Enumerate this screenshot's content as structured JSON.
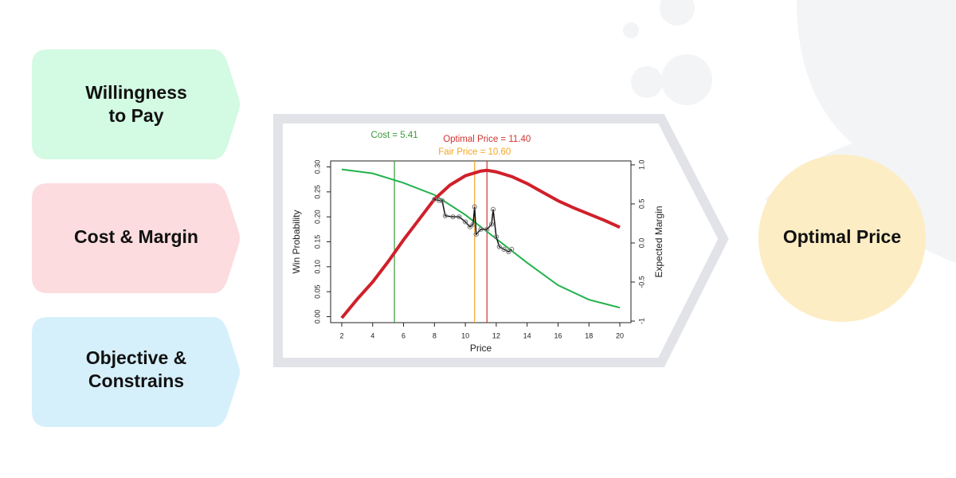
{
  "inputs": [
    [
      "Willingness",
      "to Pay"
    ],
    [
      "Cost & Margin"
    ],
    [
      "Objective &",
      "Constrains"
    ]
  ],
  "output": "Optimal Price",
  "chart_data": {
    "type": "line",
    "x_label": "Price",
    "y_label": "Win Probability",
    "y2_label": "Expected Margin",
    "xlim": [
      1.28,
      20.72
    ],
    "xticks": [
      2,
      4,
      6,
      8,
      10,
      12,
      14,
      16,
      18,
      20
    ],
    "ylim": [
      -0.012,
      0.312
    ],
    "yticks": [
      {
        "value": 0,
        "label": "0.00"
      },
      {
        "value": 0.05,
        "label": "0.05"
      },
      {
        "value": 0.1,
        "label": "0.10"
      },
      {
        "value": 0.15,
        "label": "0.15"
      },
      {
        "value": 0.2,
        "label": "0.20"
      },
      {
        "value": 0.25,
        "label": "0.25"
      },
      {
        "value": 0.3,
        "label": "0.30"
      }
    ],
    "y2lim": [
      -1.02,
      1.05
    ],
    "y2ticks": [
      -1,
      -0.5,
      {
        "value": 0,
        "label": "0.0"
      },
      0.5,
      {
        "value": 1,
        "label": "1.0"
      }
    ],
    "series": [
      {
        "color": "#22b24c",
        "x": [
          2,
          4,
          6,
          8,
          10,
          12,
          14,
          16,
          18,
          20
        ],
        "values": [
          0.295,
          0.287,
          0.268,
          0.244,
          0.204,
          0.156,
          0.108,
          0.063,
          0.034,
          0.018
        ]
      },
      {
        "color": "#d0202a",
        "axis": "y2",
        "x": [
          2,
          3,
          4,
          5,
          6,
          7,
          8,
          9,
          10,
          11,
          11.4,
          12,
          13,
          14,
          15,
          16,
          17,
          18,
          19,
          20
        ],
        "values": [
          -0.96,
          -0.72,
          -0.5,
          -0.24,
          0.04,
          0.3,
          0.56,
          0.74,
          0.86,
          0.92,
          0.93,
          0.91,
          0.85,
          0.76,
          0.65,
          0.54,
          0.45,
          0.37,
          0.29,
          0.2
        ]
      },
      {
        "color": "#111111",
        "markers": true,
        "x": [
          8.0,
          8.3,
          8.5,
          8.7,
          9.2,
          9.6,
          10.0,
          10.3,
          10.5,
          10.6,
          10.7,
          11.0,
          11.4,
          11.7,
          11.8,
          12.0,
          12.2,
          12.5,
          12.8,
          13.0
        ],
        "values": [
          0.235,
          0.233,
          0.232,
          0.202,
          0.2,
          0.2,
          0.19,
          0.18,
          0.185,
          0.22,
          0.165,
          0.175,
          0.175,
          0.185,
          0.215,
          0.16,
          0.14,
          0.135,
          0.13,
          0.135
        ]
      }
    ],
    "vlines": [
      {
        "label": "Cost = 5.41",
        "x": 5.41,
        "color": "#3a9a3a"
      },
      {
        "label": "Optimal Price = 11.40",
        "x": 11.4,
        "color": "#d0332f"
      },
      {
        "label": "Fair Price = 10.60",
        "x": 10.6,
        "color": "#f5a623"
      }
    ]
  }
}
